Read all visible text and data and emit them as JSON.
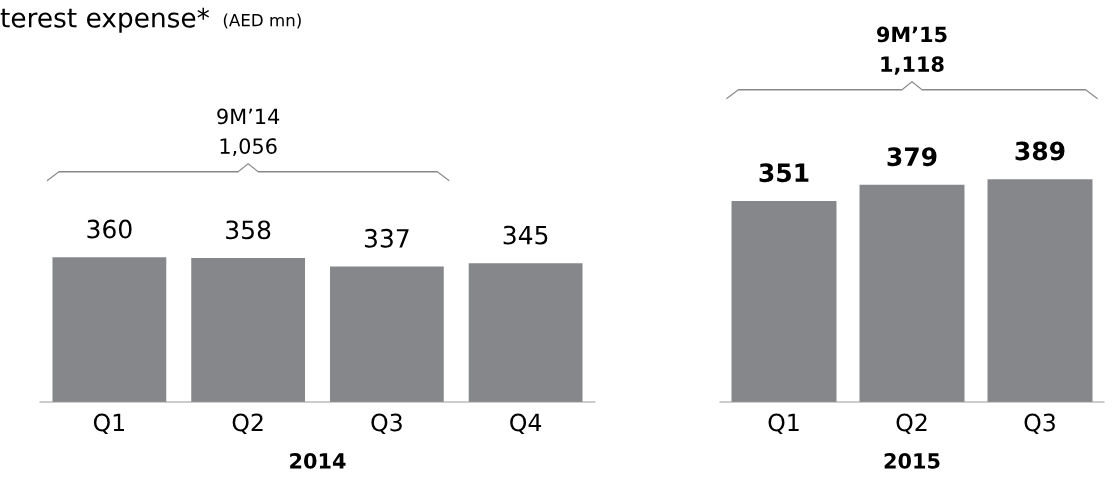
{
  "chart_data": [
    {
      "type": "bar",
      "title": "terest expense*",
      "subtitle": "(AED mn)",
      "xlabel": "2014",
      "categories": [
        "Q1",
        "Q2",
        "Q3",
        "Q4"
      ],
      "values": [
        360,
        358,
        337,
        345
      ],
      "color": "#85878b",
      "data_labels": true,
      "tick_labels": "x",
      "annotations": [
        "9M’14\n1,056"
      ]
    },
    {
      "type": "bar",
      "xlabel": "2015",
      "categories": [
        "Q1",
        "Q2",
        "Q3"
      ],
      "values": [
        351,
        379,
        389
      ],
      "color": "#85878b",
      "data_labels": true,
      "tick_labels": "x",
      "annotations": [
        "9M’15\n1,118"
      ]
    }
  ]
}
